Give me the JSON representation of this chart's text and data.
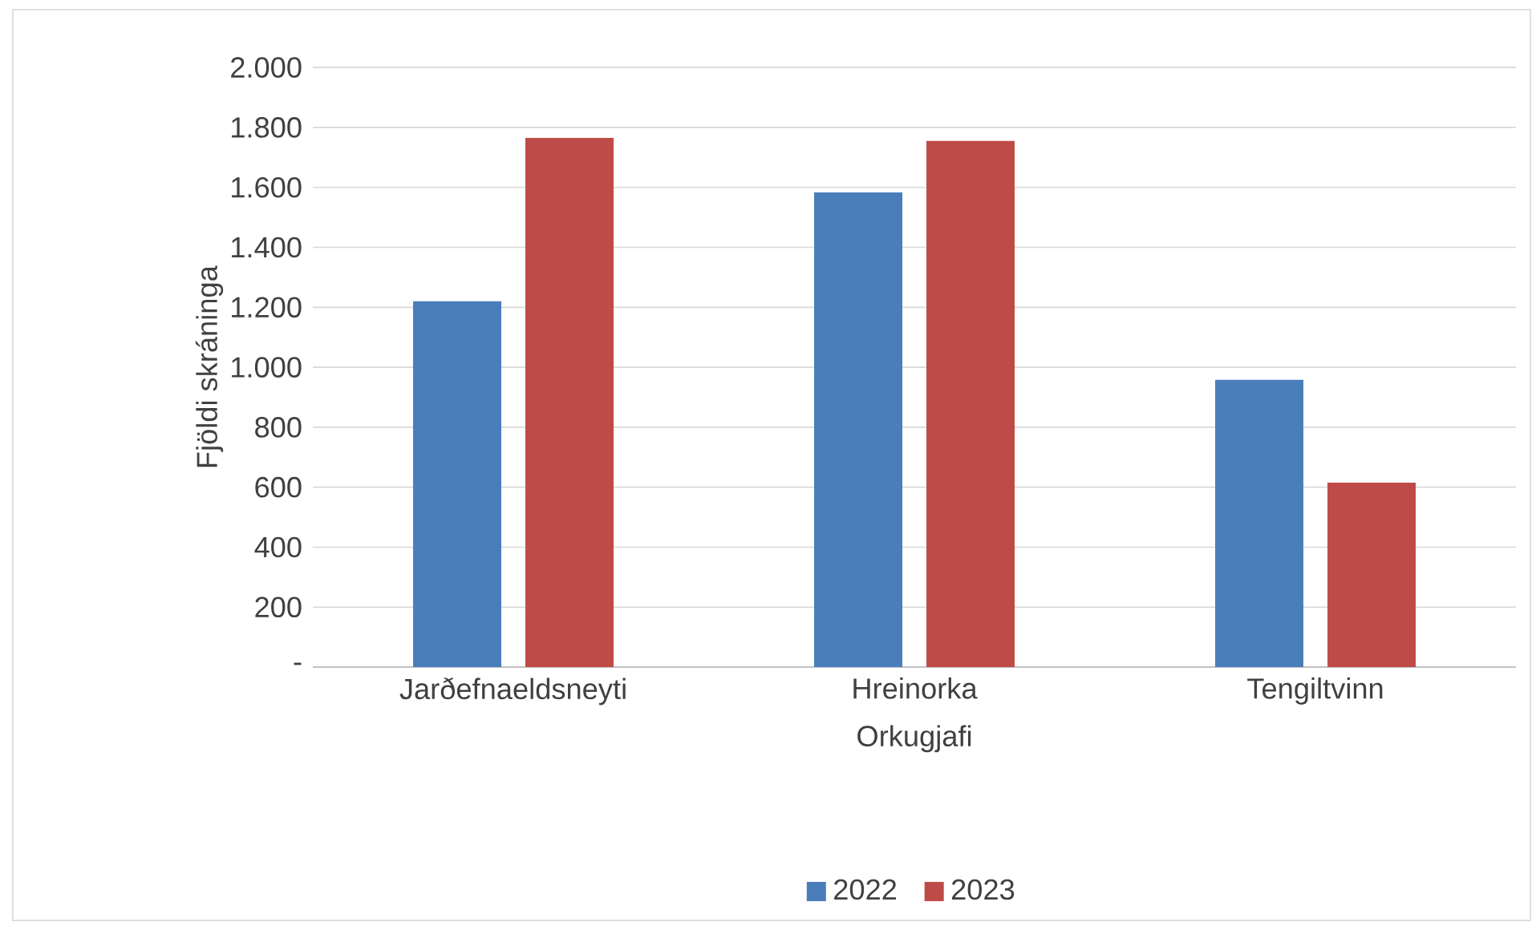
{
  "chart_data": {
    "type": "bar",
    "xlabel": "Orkugjafi",
    "ylabel": "Fjöldi skráninga",
    "categories": [
      "Jarðefnaeldsneyti",
      "Hreinorka",
      "Tengiltvinn"
    ],
    "series": [
      {
        "name": "2022",
        "color": "#4a7ebb",
        "values": [
          1220,
          1583,
          958
        ]
      },
      {
        "name": "2023",
        "color": "#be4b48",
        "values": [
          1765,
          1755,
          615
        ]
      }
    ],
    "ylim": [
      0,
      2000
    ],
    "yticks": [
      {
        "value": 0,
        "label": "-"
      },
      200,
      400,
      600,
      800,
      {
        "value": 1000,
        "label": "1.000"
      },
      {
        "value": 1200,
        "label": "1.200"
      },
      {
        "value": 1400,
        "label": "1.400"
      },
      {
        "value": 1600,
        "label": "1.600"
      },
      {
        "value": 1800,
        "label": "1.800"
      },
      {
        "value": 2000,
        "label": "2.000"
      }
    ],
    "grid": "y",
    "legend": "bottom"
  }
}
